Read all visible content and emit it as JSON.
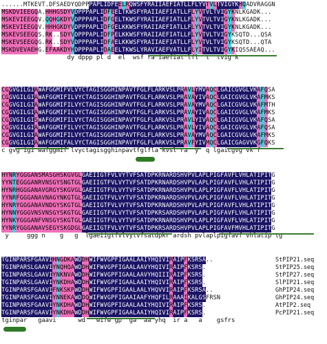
{
  "alignment": {
    "blocks": [
      {
        "offset": 0,
        "rows": [
          {
            "seq": "......MTKEVT.DFSAEDYQDPPPAPLIDFEELRQWSFYRAIIAEFIATLLFLYVTVLTVIGYKHQADVRAGGN",
            "shade": "........................kkkkkkkkmcmkkkkkkkkkkkkkkkkkkkkkmcmkkkkkkmc......"
          },
          {
            "seq": "MSKDVIEEGQA.HHHGSDYVDPPPAPLIDFEELTKWSFYRAIIAEFIATLLFLYVTVLTVIGYKNLKGADK...",
            "shade": "mmmmmmmmmm..mmmmmmmckkkkkkkkmcmkkkkkkkkkkkkkkkkkkkkkmcmkkkkkkmcm........."
          },
          {
            "seq": "MSKEVIEEGQV.QQHGKDYVDPPPAPLIDFGELTKWSFYRAIIAEFIATLLFLYVTVLTVIGYKNLKGADK...",
            "shade": "mmmmmmmmmm..cmmcmmmckkkkkkkkmcmkkkkkkkkkkkkkkkkkkkkkmcmkkkkkkmcm........."
          },
          {
            "seq": "MSKEVIEEGQV.HHHGKDYVDPPPAPLIDFGELKKWSFYRAIIAEFIATLLFLYVTVLTVIGYKNLKGADK...",
            "shade": "mmmmmmmmmm..mmmmmmmckkkkkkkkmcmkkkkkkkkkkkkkkkkkkkkkmcmkkkkkkmcm........."
          },
          {
            "seq": "MSKEVSEEGQS.RK..SDYVDPPPAPLIDFPELKKWSFYRAIIAEFIATLLFLYVTVLTVIGYKSQTD...QSA",
            "shade": "mmmmmmmmmm..mm..mmmckkkkkkkkmcmkkkkkkkkkkkkkkkkkkkkkmcmkkkkkkmc.........."
          },
          {
            "seq": "MSKEVSEEGQG.RK..SDYVDPPPAPLIDFAELKKWSFYRAIIAEFIATLLFLYVTVLTVIGYKSQTD...QTA",
            "shade": "mmmmmmmmmm..mm..mmmckkkkkkkkmcmkkkkkkkkkkkkkkkkkkkkkmcmkkkkkkmc.........."
          },
          {
            "seq": "MSKDVEVAEHG.EFAAKDYHDPPPAPLIDAEELTKWSLYRAVIAEFVATLLFLYITVLTVIGYKIQSSAEAQ...",
            "shade": "mmmmmmmmmm..mmmmmmmckkkkkkkkmcmkkkkkkkkkkkkkkkkkkkkkmcmkkkkkkmcm........."
          }
        ],
        "consensus": "                  dy dppp pl d  el  wsf ra iaefiat lfl  t  tvig k          "
      },
      {
        "offset": 0,
        "rows": [
          {
            "seq": "CGGVGILGIAWAFGGMIFVLVYCTAGISGGHINPAVTFGLFLARKVSLPRAVLYMVAQCLGAICGVGLVKAFQSA",
            "shade": "mmkkkkkkkmkkkkkkkkkkkkkkkkkkkkkkkkkkkkkkkkkkkkkkkkmcmkkkmcmkkkkkkkkkkkmcm..."
          },
          {
            "seq": "CGGVGILGIAWAFGGMIFILVYCTAGISGGHINPAVTFGLFLARKVSLPRAVAYIVAQCLGAICGVGLVKAFMKS",
            "shade": "mmkkkkkkkmkkkkkkkkkkkkkkkkkkkkkkkkkkkkkkkkkkkkkkkkmcmkkkmcmkkkkkkkkkkkmcm..."
          },
          {
            "seq": "CGGVGILGIAWAFGGMIFILVYCTAGISGGHINPAVTFGLFLARKVSLPRAVAYMVAQCLGAICGVGLVKAFMTH",
            "shade": "mmkkkkkkkmkkkkkkkkkkkkkkkkkkkkkkkkkkkkkkkkkkkkkkkkmcmkkkmcmkkkkkkkkkkkmcm..."
          },
          {
            "seq": "CGGVGILGIAWAFGGMIFILVYCTAGISGGHINPAVTFGLFLARKVSLPRAVAYIVAQCLGAICGVGLVKAFMKS",
            "shade": "mmkkkkkkkmkkkkkkkkkkkkkkkkkkkkkkkkkkkkkkkkkkkkkkkkmcmkkkmcmkkkkkkkkkkkmcm..."
          },
          {
            "seq": "CGGVGILGISWAFGGMIFILVYCTAGISGGHINPAVTFGLFLARKVSLPRAVLYIVAQCLGAICGVGLVKAFQSA",
            "shade": "mmkkkkkkkmkkkkkkkkkkkkkkkkkkkkkkkkkkkkkkkkkkkkkkkkmcmkkkmcmkkkkkkkkkkkmcm..."
          },
          {
            "seq": "CGGVGILGIAWAFGGMIFILVYCTAGISGGHINPAVTFGLFLARKVSLPRAVLYIVAQCLGAICGVGLVKAFQSA",
            "shade": "mmkkkkkkkmkkkkkkkkkkkkkkkkkkkkkkkkkkkkkkkkkkkkkkkkmcmkkkmcmkkkkkkkkkkkmcm..."
          },
          {
            "seq": "CGGVGILGIAWAFGGMIFILVYCTAGISGGHINPAVTFGLFLARKVSLPRAVAYMVAQCLGAICGVGLVKAFMKS",
            "shade": "mmkkkkkkkmkkkkkkkkkkkkkkkkkkkkkkkkkkkkkkkkkkkkkkkkmcmkkkmcmkkkkkkkkkkkmcm..."
          },
          {
            "seq": "CGGVGILGIAWAFGGMIFALVYCTAGISGGHINPAVTFGLFLARKVSLPRAVFYIVMQCLGAICGAGVVKGFQKS",
            "shade": "mmkkkkkkkmkkkkkkkkkkkkkkkkkkkkkkkkkkkkkkkkkkkkkkkkmcmkkkmcmkkkkkkkkkkkmcm..."
          }
        ],
        "consensus": "c gvg igi wafggmif lvyctagisgghinpavtfglfla kvsl ra  y  q lgaicgvg vk f     "
      },
      {
        "offset": 0,
        "rows": [
          {
            "seq": "HYNRYGGGANSMASGHSKGVGLGAEIIGTFVLVYTVFSATDPKRNARDSHVPVLAPLPIGFAVFLVHLATIPITG",
            "shade": "mmmcmmmmmmmmmmmmmmmmmmkkkkkkkkkkkkkkkkkkkkkkkkkkkkkkkkkkkkkkkkkkkkkkkkkkkk"
          },
          {
            "seq": "YYNTEGGGANRVNSGYSNGTGLGAEIIGTFVLVYTVFSATDPKRNARDSHVPVLAPLPIGFAVFLVHLATIPITG",
            "shade": "mmmcmmmmmmmmmmmmmmmmmmkkkkkkkkkkkkkkkkkkkkkkkkkkkkkkkkkkkkkkkkkkkkkkkkkkkk"
          },
          {
            "seq": "HYNRHGGGANAVGRGYSKGVGLGAEIIGTFVLVYTVFSATDPKRNARDSHVPVLAPLPIGFAVFLVHLATIPITG",
            "shade": "mmmcmmmmmmmmmmmmmmmmmmkkkkkkkkkkkkkkkkkkkkkkkkkkkkkkkkkkkkkkkkkkkkkkkkkkkk"
          },
          {
            "seq": "YYNRFGGGANAVNAGYNKGTGLGAEIIGTFVLVYTVFSATDPKRNARDSHVPVLAPLPIGFAVFLVHLATIPITG",
            "shade": "mmmcmmmmmmmmmmmmmmmmmmkkkkkkkkkkkkkkkkkkkkkkkkkkkkkkkkkkkkkkkkkkkkkkkkkkkk"
          },
          {
            "seq": "HYNRYGGGANAVNDGYSKGTGLGAEIIGTFVLVYTVFSATDPKRNARDSHVPVLAPLPIGFAVFLVHLATIPITG",
            "shade": "mmmcmmmmmmmmmmmmmmmmmmkkkkkkkkkkkkkkkkkkkkkkkkkkkkkkkkkkkkkkkkkkkkkkkkkkkk"
          },
          {
            "seq": "HYNNYGGGVNSVNSGYSKGTGLGAEIIGTFVLVYTVFSATDPKRSARDSHVPVLAPLPIGFAVFLVHLATIPITG",
            "shade": "mmmcmmmmmmmmmmmmmmmmmmkkkkkkkkkkkkkkkkkkkkkkkkkkkkkkkkkkkkkkkkkkkkkkkkkkkk"
          },
          {
            "seq": "HYNKYGGGANFVNSGYSKGTGLGAEIIGTFVLVYTVFSATDPKRNARDSHVPVLAPLPIGFAVFLVHLATIPITG",
            "shade": "mmmcmmmmmmmmmmmmmmmmmmkkkkkkkkkkkkkkkkkkkkkkkkkkkkkkkkkkkkkkkkkkkkkkkkkkkk"
          },
          {
            "seq": "YYNRYGGGANAVSEGYSKGDGLGAEIIGTFVLVYTVFSATDPKRSARDSHVPVLAPLPIGFAVFMVHLATIPITG",
            "shade": "mmmcmmmmmmmmmmmmmmmmmmkkkkkkkkkkkkkkkkkkkkkkkkkkkkkkkkkkkkkkkkkkkkkkkkkkkk"
          }
        ],
        "consensus": " y     ggg n    g   g  lgaeiigtfvlvytvfsatdpkr ardsh pvlaplpigfavf vhlatip tg"
      },
      {
        "offset": 0,
        "rows": [
          {
            "seq": "TGINPARSFGAAVIHNGDKAWDDHWIFWVGPFIGAALAAIYHQIVIRAIPFKSRSA..",
            "name": "StPIP21.seq",
            "shade": "kkkkkkkkkkkkkkmcmmmmkkmmkkkkkkkkkkkkkkkkkkkkkkmkkkmkkkkk.."
          },
          {
            "seq": "TGINPARSLGAAVIYNQHQAWDDHWIFWVGPFIGAALAAVYHQIVIRAIPFKSRS.",
            "name": "StPIP25.seq",
            "shade": "kkkkkkkkkkkkkkmcmmmmkkmmkkkkkkkkkkkkkkkkkkkkkkmkkkmkkkkk.."
          },
          {
            "seq": "TGINPARSLGAAVIYNKNVAWDDHWIFWVGPFIGAALAAVYHQIIIRAIPFKSRS.",
            "name": "StPIP27.seq",
            "shade": "kkkkkkkkkkkkkkmcmmmmkkmmkkkkkkkkkkkkkkkkkkkkkkmkkkmkkkkk.."
          },
          {
            "seq": "TGINPARSLGAAVIYNKDHAWDDHWIFWVGPFIGAALAAIYHQIVIRAIPFKSRS.",
            "name": "SlPIP21.seq",
            "shade": "kkkkkkkkkkkkkkmcmmmmkkmmkkkkkkkkkkkkkkkkkkkkkkmkkkmkkkkk.."
          },
          {
            "seq": "TGINPARSFGAAVIFNKSKPWDDHWIFWVGPFIGAALAALYHQVVIRAIPFKSRSA..",
            "name": "GhPIP24.seq",
            "shade": "kkkkkkkkkkkkkkmcmmmmkkmmkkkkkkkkkkkkkkkkkkkkkkmkkkmkkkkk.."
          },
          {
            "seq": "TGINPARSFGAAVIYNNEKAWDDQWIFWVGPFIGAAIAAFYHQFILRAAAIKALGSFRSN",
            "name": "GhPIP24.seq",
            "shade": "kkkkkkkkkkkkkkmcmmmmkkmmkkkkkkkkkkkkkkkkkkkkkkmkkkmkkkkk.."
          },
          {
            "seq": "TGINPARSFGAAVIYNKDHAWDDHWIFWVGPFIGAALAAIYHQIVIRAIPFKSRS.",
            "name": "AtPIP2.seq",
            "shade": "kkkkkkkkkkkkkkmcmmmmkkmmkkkkkkkkkkkkkkkkkkkkkkmkkkmkkkkk.."
          },
          {
            "seq": "TGINPARSFGAAVIYNKDHAWDDHWIFWVGPFIGAALAAIYHQIVIRAIPFKSRS.",
            "name": "PcPIP21.seq",
            "shade": "kkkkkkkkkkkkkkmcmmmmkkmmkkkkkkkkkkkkkkkkkkkkkkmkkkmkkkkk.."
          }
        ],
        "consensus": "tginpar   gaavi      wd   wifw gp  ga  aa yhq  ir a   a    gsfrs"
      }
    ]
  }
}
